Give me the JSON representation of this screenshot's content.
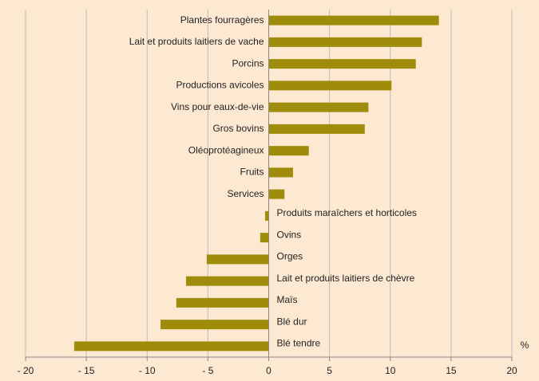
{
  "chart_data": {
    "type": "hbar",
    "categories": [
      "Plantes fourragères",
      "Lait et produits laitiers de vache",
      "Porcins",
      "Productions avicoles",
      "Vins pour eaux-de-vie",
      "Gros bovins",
      "Oléoprotéagineux",
      "Fruits",
      "Services",
      "Produits maraîchers et horticoles",
      "Ovins",
      "Orges",
      "Lait et produits laitiers de chèvre",
      "Maïs",
      "Blé dur",
      "Blé tendre"
    ],
    "values": [
      14,
      12.6,
      12.1,
      10.1,
      8.2,
      7.9,
      3.3,
      2.0,
      1.3,
      -0.3,
      -0.7,
      -5.1,
      -6.8,
      -7.6,
      -8.9,
      -16.0
    ],
    "color": "#9e8c0a",
    "xlim": [
      -20,
      20
    ],
    "xticks": [
      {
        "value": -20,
        "label": "- 20"
      },
      {
        "value": -15,
        "label": "- 15"
      },
      {
        "value": -10,
        "label": "- 10"
      },
      {
        "value": -5,
        "label": "- 5"
      },
      0,
      5,
      10,
      15,
      20
    ],
    "x_label": "%",
    "grid": true
  }
}
